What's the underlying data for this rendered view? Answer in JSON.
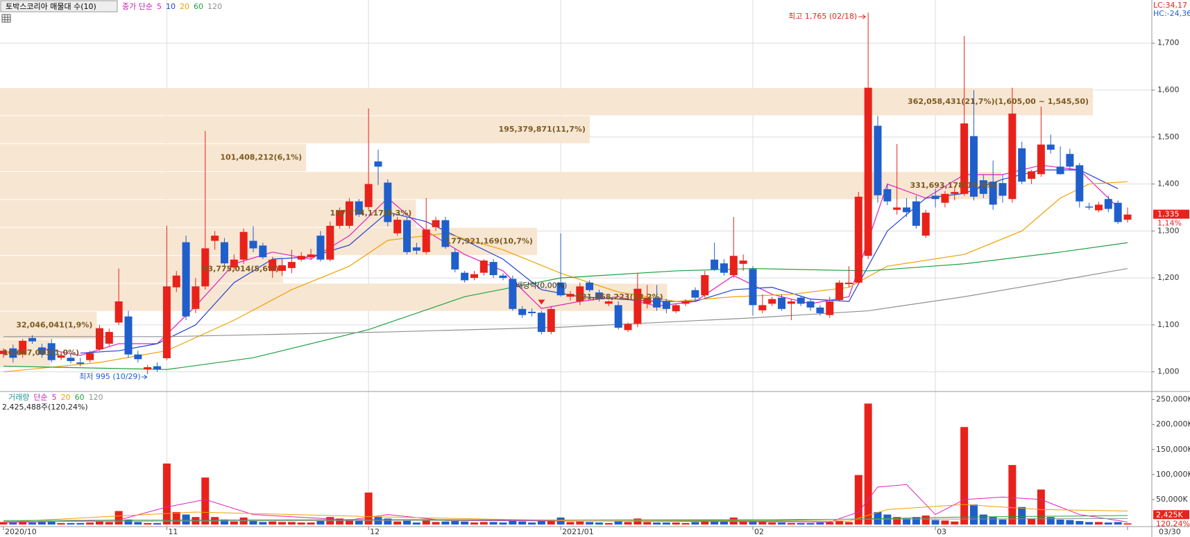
{
  "chart_data": {
    "type": "candlestick",
    "title": "토박스코리아 매물대 수(10)",
    "legend_title": "종가 단순",
    "right_header": [
      "LC:34,17",
      "HC:-24,36"
    ],
    "ylim": [
      970,
      1780
    ],
    "yticks": [
      {
        "value": 1000,
        "label": "1,000"
      },
      {
        "value": 1100,
        "label": "1,100"
      },
      {
        "value": 1200,
        "label": "1,200"
      },
      {
        "value": 1300,
        "label": "1,300"
      },
      {
        "value": 1400,
        "label": "1,400"
      },
      {
        "value": 1500,
        "label": "1,500"
      },
      {
        "value": 1600,
        "label": "1,600"
      },
      {
        "value": 1700,
        "label": "1,700"
      }
    ],
    "xlim": [
      0,
      117
    ],
    "xticks": [
      {
        "value": 0,
        "label": "2020/10"
      },
      {
        "value": 17,
        "label": "11"
      },
      {
        "value": 38,
        "label": "12"
      },
      {
        "value": 58,
        "label": "2021/01"
      },
      {
        "value": 78,
        "label": "02"
      },
      {
        "value": 97,
        "label": "03"
      },
      {
        "value": 117,
        "label": "03/30"
      }
    ],
    "grid": true,
    "up_color": "#e8221a",
    "down_color": "#1f5fcc",
    "candles": {
      "open": [
        1038,
        1050,
        1037,
        1072,
        1052,
        1061,
        1030,
        1030,
        1020,
        1025,
        1048,
        1060,
        1105,
        1118,
        1037,
        1005,
        1012,
        1029,
        1180,
        1276,
        1134,
        1182,
        1279,
        1276,
        1222,
        1239,
        1279,
        1269,
        1215,
        1215,
        1221,
        1239,
        1244,
        1290,
        1239,
        1311,
        1311,
        1363,
        1351,
        1448,
        1403,
        1295,
        1323,
        1265,
        1255,
        1308,
        1323,
        1255,
        1211,
        1200,
        1211,
        1234,
        1205,
        1198,
        1134,
        1128,
        1126,
        1085,
        1190,
        1160,
        1150,
        1190,
        1169,
        1145,
        1142,
        1089,
        1102,
        1145,
        1158,
        1150,
        1129,
        1145,
        1174,
        1163,
        1239,
        1231,
        1206,
        1230,
        1219,
        1131,
        1145,
        1158,
        1145,
        1158,
        1150,
        1137,
        1121,
        1153,
        1187,
        1190,
        1247,
        1524,
        1389,
        1345,
        1350,
        1363,
        1290,
        1375,
        1360,
        1379,
        1379,
        1502,
        1408,
        1405,
        1402,
        1368,
        1476,
        1411,
        1421,
        1484,
        1437,
        1464,
        1440,
        1352,
        1344,
        1368,
        1360,
        1324
      ],
      "high": [
        1050,
        1058,
        1070,
        1078,
        1060,
        1070,
        1042,
        1038,
        1030,
        1045,
        1100,
        1092,
        1220,
        1130,
        1045,
        1015,
        1020,
        1311,
        1215,
        1290,
        1200,
        1513,
        1300,
        1285,
        1250,
        1305,
        1310,
        1275,
        1245,
        1240,
        1260,
        1255,
        1262,
        1300,
        1320,
        1350,
        1370,
        1368,
        1561,
        1473,
        1410,
        1330,
        1330,
        1275,
        1370,
        1330,
        1330,
        1262,
        1215,
        1215,
        1240,
        1240,
        1210,
        1205,
        1140,
        1135,
        1130,
        1140,
        1295,
        1172,
        1190,
        1195,
        1175,
        1152,
        1150,
        1105,
        1210,
        1185,
        1185,
        1155,
        1145,
        1155,
        1180,
        1215,
        1275,
        1240,
        1330,
        1250,
        1225,
        1165,
        1160,
        1165,
        1155,
        1162,
        1155,
        1142,
        1160,
        1195,
        1225,
        1383,
        1765,
        1545,
        1400,
        1485,
        1370,
        1375,
        1345,
        1390,
        1385,
        1395,
        1715,
        1600,
        1420,
        1450,
        1420,
        1605,
        1490,
        1430,
        1565,
        1505,
        1480,
        1475,
        1445,
        1360,
        1362,
        1375,
        1365,
        1350
      ],
      "low": [
        1030,
        1020,
        1030,
        1060,
        1030,
        1020,
        1025,
        1018,
        1012,
        1020,
        1045,
        1055,
        1100,
        1030,
        1020,
        995,
        1000,
        1025,
        1170,
        1110,
        1125,
        1175,
        1260,
        1225,
        1215,
        1230,
        1255,
        1240,
        1200,
        1205,
        1210,
        1235,
        1238,
        1235,
        1235,
        1305,
        1305,
        1330,
        1345,
        1398,
        1310,
        1290,
        1250,
        1250,
        1250,
        1300,
        1262,
        1212,
        1190,
        1195,
        1205,
        1200,
        1195,
        1130,
        1115,
        1118,
        1080,
        1080,
        1160,
        1152,
        1142,
        1170,
        1150,
        1140,
        1090,
        1085,
        1095,
        1135,
        1130,
        1125,
        1125,
        1140,
        1150,
        1158,
        1215,
        1205,
        1200,
        1215,
        1120,
        1125,
        1140,
        1130,
        1110,
        1140,
        1130,
        1120,
        1115,
        1150,
        1180,
        1185,
        1240,
        1360,
        1355,
        1335,
        1330,
        1305,
        1285,
        1350,
        1350,
        1365,
        1375,
        1365,
        1370,
        1345,
        1360,
        1360,
        1400,
        1400,
        1415,
        1465,
        1420,
        1430,
        1350,
        1345,
        1340,
        1340,
        1315,
        1318
      ],
      "close": [
        1045,
        1030,
        1066,
        1065,
        1037,
        1025,
        1035,
        1023,
        1017,
        1040,
        1093,
        1085,
        1150,
        1037,
        1027,
        1010,
        1005,
        1182,
        1205,
        1118,
        1182,
        1263,
        1290,
        1231,
        1239,
        1298,
        1263,
        1244,
        1239,
        1227,
        1234,
        1247,
        1250,
        1239,
        1311,
        1344,
        1363,
        1335,
        1400,
        1437,
        1319,
        1324,
        1255,
        1258,
        1303,
        1323,
        1266,
        1218,
        1195,
        1208,
        1237,
        1206,
        1200,
        1134,
        1121,
        1125,
        1085,
        1134,
        1163,
        1166,
        1182,
        1174,
        1155,
        1150,
        1094,
        1102,
        1177,
        1158,
        1137,
        1134,
        1142,
        1150,
        1158,
        1206,
        1218,
        1211,
        1247,
        1237,
        1142,
        1142,
        1155,
        1134,
        1150,
        1145,
        1137,
        1125,
        1150,
        1190,
        1190,
        1373,
        1605,
        1376,
        1363,
        1350,
        1340,
        1311,
        1339,
        1368,
        1379,
        1383,
        1529,
        1373,
        1379,
        1356,
        1375,
        1550,
        1405,
        1427,
        1484,
        1473,
        1421,
        1437,
        1363,
        1350,
        1356,
        1347,
        1319,
        1335
      ]
    },
    "ma": [
      {
        "name": "5",
        "color": "#e020c0",
        "x": [
          4,
          8,
          12,
          16,
          20,
          24,
          28,
          32,
          36,
          40,
          44,
          48,
          52,
          56,
          60,
          64,
          68,
          72,
          76,
          80,
          84,
          88,
          92,
          96,
          100,
          104,
          108,
          112,
          116
        ],
        "values": [
          1050,
          1035,
          1060,
          1060,
          1140,
          1230,
          1255,
          1240,
          1290,
          1370,
          1300,
          1250,
          1215,
          1135,
          1150,
          1160,
          1140,
          1150,
          1205,
          1165,
          1145,
          1160,
          1400,
          1370,
          1420,
          1420,
          1440,
          1430,
          1350
        ]
      },
      {
        "name": "10",
        "color": "#2040d0",
        "x": [
          8,
          12,
          16,
          20,
          24,
          28,
          32,
          36,
          40,
          44,
          48,
          52,
          56,
          60,
          64,
          68,
          72,
          76,
          80,
          84,
          88,
          92,
          96,
          100,
          104,
          108,
          112,
          116
        ],
        "values": [
          1040,
          1045,
          1060,
          1100,
          1190,
          1240,
          1245,
          1270,
          1340,
          1320,
          1280,
          1240,
          1175,
          1160,
          1155,
          1150,
          1150,
          1175,
          1180,
          1155,
          1150,
          1300,
          1370,
          1380,
          1410,
          1430,
          1430,
          1390
        ]
      },
      {
        "name": "20",
        "color": "#f0a000",
        "x": [
          0,
          10,
          17,
          24,
          30,
          36,
          40,
          46,
          52,
          58,
          64,
          70,
          76,
          82,
          88,
          92,
          100,
          106,
          110,
          113,
          117
        ],
        "values": [
          1000,
          1020,
          1045,
          1110,
          1175,
          1225,
          1280,
          1295,
          1260,
          1210,
          1170,
          1150,
          1160,
          1165,
          1180,
          1225,
          1250,
          1300,
          1370,
          1400,
          1405
        ]
      },
      {
        "name": "60",
        "color": "#20a040",
        "x": [
          0,
          17,
          26,
          38,
          48,
          58,
          70,
          78,
          90,
          100,
          110,
          117
        ],
        "values": [
          1012,
          1005,
          1030,
          1090,
          1160,
          1200,
          1215,
          1220,
          1215,
          1230,
          1255,
          1275
        ]
      },
      {
        "name": "120",
        "color": "#909090",
        "x": [
          0,
          17,
          40,
          58,
          78,
          90,
          100,
          110,
          117
        ],
        "values": [
          1075,
          1075,
          1085,
          1095,
          1115,
          1130,
          1160,
          1195,
          1220
        ]
      }
    ],
    "volume_profile": {
      "ranges": [
        [
          1545.5,
          1605
        ],
        [
          1486,
          1545.5
        ],
        [
          1426.5,
          1486
        ],
        [
          1367,
          1426.5
        ],
        [
          1307.5,
          1367
        ],
        [
          1248,
          1307.5
        ],
        [
          1188.5,
          1248
        ],
        [
          1129,
          1188.5
        ],
        [
          1069.5,
          1129
        ],
        [
          1010,
          1069.5
        ]
      ],
      "values": [
        362058431,
        195379871,
        101408212,
        331693178,
        137774117,
        177921169,
        93775014,
        221068223,
        32046041,
        16647093
      ],
      "value_labels": [
        "362,058,431(21,7%)(1,605,00 ~ 1,545,50)",
        "195,379,871(11,7%)",
        "101,408,212(6,1%)",
        "331,693,178(19,9%)",
        "137,774,117(8,3%)",
        "177,921,169(10,7%)",
        "93,775,014(5,6%)",
        "221,068,223(13,2%)",
        "32,046,041(1,9%)",
        "16,647,093(1,0%)"
      ],
      "color": "#f7e6d2"
    },
    "high_label": "최고 1,765 (02/18)",
    "low_label": "최저 995 (10/29)",
    "dividend": {
      "label": "배당락(0,00%)",
      "x": 56
    },
    "last_price_label": "1,335",
    "last_change_label": "1,14%",
    "volume": [
      5000,
      4000,
      6000,
      4000,
      5000,
      6000,
      3000,
      3000,
      3000,
      4000,
      6000,
      5000,
      27000,
      10000,
      5000,
      3000,
      3000,
      122000,
      25000,
      20000,
      15000,
      94000,
      15000,
      10000,
      6000,
      14000,
      8000,
      5000,
      6000,
      5000,
      5000,
      4000,
      4000,
      8000,
      15000,
      12000,
      10000,
      8000,
      64000,
      15000,
      12000,
      6000,
      8000,
      4000,
      9000,
      5000,
      6000,
      7000,
      6000,
      4000,
      5000,
      5000,
      4000,
      8000,
      6000,
      4000,
      7000,
      8000,
      14000,
      5000,
      6000,
      5000,
      4000,
      3000,
      7000,
      5000,
      12000,
      5000,
      4000,
      4000,
      4000,
      3000,
      5000,
      8000,
      9000,
      6000,
      14000,
      6000,
      8000,
      5000,
      4000,
      4000,
      3000,
      3000,
      3000,
      4000,
      5000,
      8000,
      5000,
      99000,
      242000,
      25000,
      20000,
      15000,
      12000,
      15000,
      18000,
      9000,
      8000,
      6000,
      195000,
      40000,
      20000,
      15000,
      10000,
      119000,
      35000,
      12000,
      70000,
      15000,
      10000,
      9000,
      7000,
      5000,
      5000,
      4000,
      5000,
      2425
    ],
    "volume_title": "거래량",
    "volume_method": "단순",
    "volume_summary": "2,425,488주(120,24%)",
    "volume_ylim": [
      0,
      255000
    ],
    "volume_yticks": [
      {
        "value": 50000,
        "label": "50,000K"
      },
      {
        "value": 100000,
        "label": "100,000K"
      },
      {
        "value": 150000,
        "label": "150,000K"
      },
      {
        "value": 200000,
        "label": "200,000K"
      },
      {
        "value": 250000,
        "label": "250,000K"
      }
    ],
    "last_volume_label": "2,425K",
    "last_volume_change_label": "120,24%",
    "volume_ma": [
      {
        "name": "5",
        "color": "#e020c0",
        "x": [
          0,
          12,
          17,
          21,
          26,
          36,
          40,
          46,
          60,
          86,
          89,
          91,
          94,
          97,
          100,
          104,
          108,
          112,
          117
        ],
        "values": [
          4000,
          9000,
          35000,
          50000,
          20000,
          9000,
          20000,
          8000,
          7000,
          5000,
          25000,
          75000,
          80000,
          20000,
          50000,
          55000,
          50000,
          20000,
          5000
        ]
      },
      {
        "name": "20",
        "color": "#f0a000",
        "x": [
          0,
          20,
          40,
          60,
          88,
          92,
          100,
          108,
          117
        ],
        "values": [
          5000,
          25000,
          15000,
          7000,
          7000,
          30000,
          40000,
          30000,
          27000
        ]
      },
      {
        "name": "60",
        "color": "#20a040",
        "x": [
          0,
          40,
          80,
          100,
          117
        ],
        "values": [
          8000,
          10000,
          8000,
          15000,
          18000
        ]
      },
      {
        "name": "120",
        "color": "#909090",
        "x": [
          0,
          117
        ],
        "values": [
          6000,
          12000
        ]
      }
    ]
  }
}
